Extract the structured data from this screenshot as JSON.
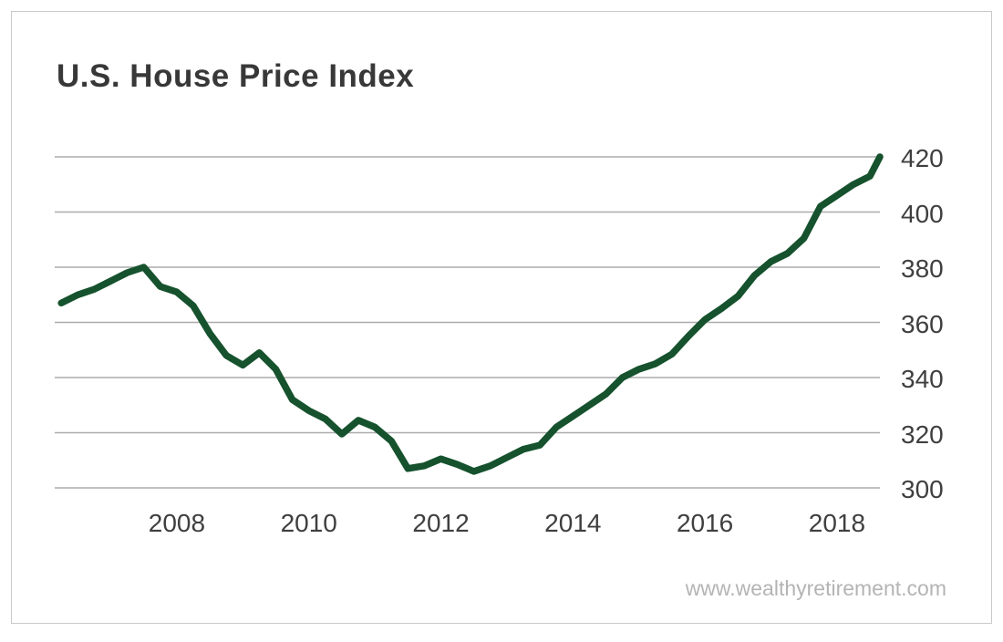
{
  "frame": {
    "background": "#ffffff",
    "border_color": "#c9c9c9"
  },
  "header": {
    "title": "U.S. House Price Index"
  },
  "watermark": {
    "text": "www.wealthyretirement.com"
  },
  "colors": {
    "line_green": "#15522d",
    "gridline": "#ababab",
    "tick_label": "#3f3f3f",
    "title": "#383838",
    "watermark": "#b4b4b4"
  },
  "chart_data": {
    "type": "line",
    "title": "U.S. House Price Index",
    "xlabel": "",
    "ylabel": "",
    "grid": "horizontal-only",
    "legend": "none",
    "y_axis_side": "right",
    "xlim": [
      2006.15,
      2018.65
    ],
    "ylim": [
      300,
      420
    ],
    "x_ticks": [
      2008,
      2010,
      2012,
      2014,
      2016,
      2018
    ],
    "y_ticks": [
      300,
      320,
      340,
      360,
      380,
      400,
      420
    ],
    "series": [
      {
        "name": "U.S. House Price Index",
        "color": "#15522d",
        "x": [
          2006.25,
          2006.5,
          2006.75,
          2007.0,
          2007.25,
          2007.5,
          2007.75,
          2008.0,
          2008.25,
          2008.5,
          2008.75,
          2009.0,
          2009.25,
          2009.5,
          2009.75,
          2010.0,
          2010.25,
          2010.5,
          2010.75,
          2011.0,
          2011.25,
          2011.5,
          2011.75,
          2012.0,
          2012.25,
          2012.5,
          2012.75,
          2013.0,
          2013.25,
          2013.5,
          2013.75,
          2014.0,
          2014.25,
          2014.5,
          2014.75,
          2015.0,
          2015.25,
          2015.5,
          2015.75,
          2016.0,
          2016.25,
          2016.5,
          2016.75,
          2017.0,
          2017.25,
          2017.5,
          2017.75,
          2018.0,
          2018.25,
          2018.5,
          2018.65
        ],
        "values": [
          367,
          370,
          372,
          375,
          378,
          380,
          373,
          371,
          366,
          356,
          348,
          344.5,
          349,
          343,
          332,
          328,
          325,
          319.5,
          324.5,
          322,
          317,
          307,
          308,
          310.5,
          308.5,
          306,
          308,
          311,
          314,
          315.5,
          322,
          326,
          330,
          334,
          340,
          343,
          345,
          348.5,
          355,
          361,
          365,
          369.5,
          377,
          382,
          385,
          390.5,
          402,
          406,
          410,
          413,
          420
        ]
      }
    ]
  }
}
